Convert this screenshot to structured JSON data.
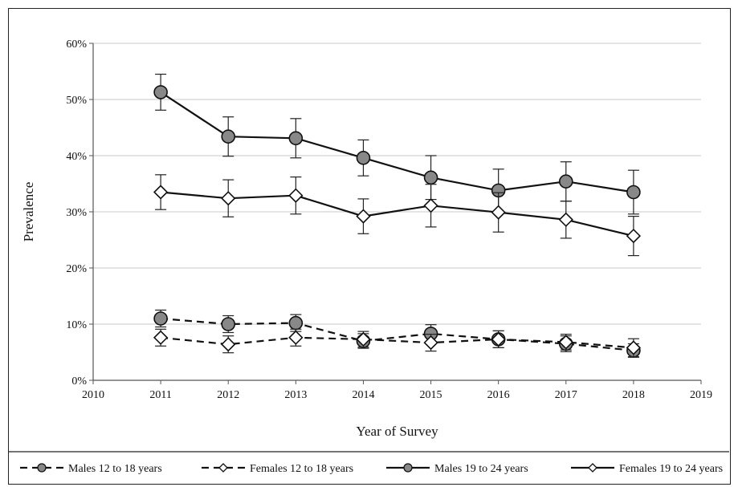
{
  "chart_data": {
    "type": "line",
    "title": "",
    "xlabel": "Year of Survey",
    "ylabel": "Prevalence",
    "xlim": [
      2010,
      2019
    ],
    "ylim": [
      0,
      60
    ],
    "x_ticks": [
      "2010",
      "2011",
      "2012",
      "2013",
      "2014",
      "2015",
      "2016",
      "2017",
      "2018",
      "2019"
    ],
    "y_ticks": [
      "0%",
      "10%",
      "20%",
      "30%",
      "40%",
      "50%",
      "60%"
    ],
    "grid": "horizontal",
    "legend_position": "bottom",
    "x": [
      2011,
      2012,
      2013,
      2014,
      2015,
      2016,
      2017,
      2018
    ],
    "series": [
      {
        "name": "Males 12 to 18 years",
        "line_style": "dashed",
        "marker": "circle",
        "marker_fill": "#888888",
        "values": [
          11.0,
          10.0,
          10.2,
          7.0,
          8.3,
          7.3,
          6.5,
          5.3
        ],
        "error": [
          1.5,
          1.5,
          1.5,
          1.3,
          1.6,
          1.5,
          1.4,
          1.2
        ]
      },
      {
        "name": "Females 12 to 18 years",
        "line_style": "dashed",
        "marker": "diamond",
        "marker_fill": "#ffffff",
        "values": [
          7.6,
          6.4,
          7.6,
          7.3,
          6.7,
          7.3,
          6.8,
          5.8
        ],
        "error": [
          1.5,
          1.5,
          1.5,
          1.4,
          1.5,
          1.5,
          1.4,
          1.6
        ]
      },
      {
        "name": "Males 19 to 24 years",
        "line_style": "solid",
        "marker": "circle",
        "marker_fill": "#888888",
        "values": [
          51.3,
          43.4,
          43.1,
          39.6,
          36.1,
          33.8,
          35.4,
          33.5
        ],
        "error": [
          3.2,
          3.5,
          3.5,
          3.2,
          3.9,
          3.8,
          3.5,
          3.9
        ]
      },
      {
        "name": "Females 19 to 24 years",
        "line_style": "solid",
        "marker": "diamond",
        "marker_fill": "#ffffff",
        "values": [
          33.5,
          32.4,
          32.9,
          29.2,
          31.1,
          29.9,
          28.6,
          25.7
        ],
        "error": [
          3.1,
          3.3,
          3.3,
          3.1,
          3.8,
          3.5,
          3.3,
          3.5
        ]
      }
    ]
  }
}
